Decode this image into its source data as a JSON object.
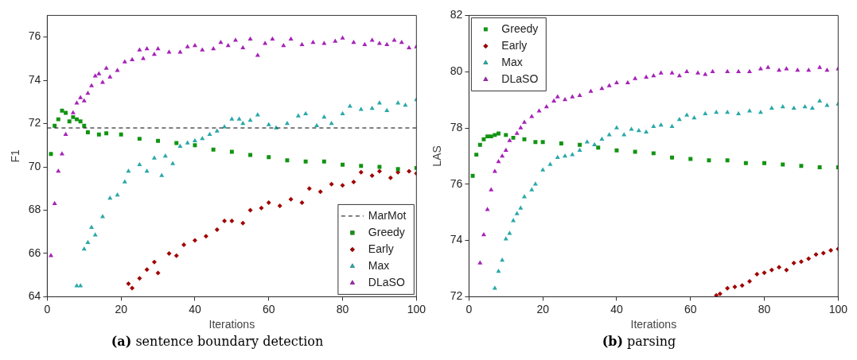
{
  "chart_data": [
    {
      "type": "scatter",
      "title": "(a) sentence boundary detection",
      "xlabel": "Iterations",
      "ylabel": "F1",
      "xlim": [
        0,
        100
      ],
      "xticks": [
        0,
        20,
        40,
        60,
        80,
        100
      ],
      "ylim": [
        64,
        77
      ],
      "yticks": [
        64,
        66,
        68,
        70,
        72,
        74,
        76
      ],
      "grid": false,
      "legend": "bottom right",
      "ref_lines": [
        {
          "axis": "y",
          "value": 71.8,
          "label": "MarMot",
          "color": "#000000",
          "line_style": "dashed"
        }
      ],
      "series": [
        {
          "name": "Greedy",
          "color": "#129412",
          "marker": "square",
          "x": [
            1,
            2,
            3,
            4,
            5,
            6,
            7,
            8,
            9,
            10,
            11,
            14,
            16,
            20,
            25,
            30,
            35,
            40,
            45,
            50,
            55,
            60,
            65,
            70,
            75,
            80,
            85,
            90,
            95,
            100
          ],
          "values": [
            70.6,
            71.9,
            72.2,
            72.6,
            72.5,
            72.1,
            72.3,
            72.2,
            72.1,
            71.9,
            71.6,
            71.5,
            71.55,
            71.5,
            71.3,
            71.2,
            71.1,
            71.0,
            70.8,
            70.7,
            70.55,
            70.45,
            70.3,
            70.25,
            70.25,
            70.1,
            70.05,
            70.0,
            69.9,
            69.95
          ]
        },
        {
          "name": "Early",
          "color": "#a00000",
          "marker": "diamond",
          "x": [
            22,
            23,
            25,
            27,
            29,
            30,
            33,
            35,
            37,
            40,
            43,
            46,
            48,
            50,
            53,
            55,
            58,
            60,
            63,
            66,
            69,
            71,
            74,
            77,
            80,
            83,
            85,
            88,
            90,
            93,
            95,
            98,
            100
          ],
          "values": [
            64.6,
            64.4,
            64.85,
            65.25,
            65.6,
            65.1,
            66.0,
            65.9,
            66.4,
            66.6,
            66.8,
            67.1,
            67.5,
            67.5,
            67.4,
            68.0,
            68.1,
            68.35,
            68.2,
            68.5,
            68.35,
            69.0,
            68.85,
            69.2,
            69.15,
            69.3,
            69.75,
            69.6,
            69.8,
            69.5,
            69.75,
            69.8,
            69.7
          ]
        },
        {
          "name": "Max",
          "color": "#2aa8a8",
          "marker": "triangle",
          "x": [
            8,
            9,
            10,
            11,
            12,
            13,
            15,
            17,
            19,
            21,
            22,
            25,
            27,
            29,
            31,
            32,
            34,
            36,
            38,
            40,
            42,
            44,
            46,
            48,
            50,
            52,
            53,
            55,
            57,
            60,
            62,
            65,
            68,
            70,
            73,
            75,
            77,
            80,
            82,
            85,
            88,
            90,
            92,
            95,
            97,
            100
          ],
          "values": [
            64.5,
            64.5,
            66.2,
            66.5,
            67.2,
            66.85,
            67.7,
            68.55,
            68.7,
            69.3,
            69.8,
            70.1,
            69.8,
            70.4,
            69.6,
            70.5,
            70.15,
            70.95,
            71.1,
            71.2,
            71.3,
            71.5,
            71.65,
            71.85,
            72.2,
            72.2,
            72.0,
            72.15,
            72.4,
            71.95,
            71.8,
            72.0,
            72.35,
            72.45,
            71.9,
            72.3,
            72.0,
            72.45,
            72.8,
            72.65,
            72.7,
            72.95,
            72.6,
            72.95,
            72.85,
            73.1
          ]
        },
        {
          "name": "DLaSO",
          "color": "#a622b8",
          "marker": "triangle",
          "x": [
            1,
            2,
            3,
            4,
            5,
            7,
            8,
            9,
            10,
            11,
            12,
            13,
            14,
            15,
            16,
            17,
            19,
            21,
            23,
            25,
            26,
            27,
            29,
            30,
            33,
            36,
            38,
            40,
            42,
            45,
            47,
            49,
            51,
            53,
            55,
            57,
            59,
            61,
            64,
            66,
            69,
            72,
            75,
            78,
            80,
            83,
            86,
            88,
            90,
            92,
            94,
            96,
            98,
            100
          ],
          "values": [
            65.9,
            68.3,
            69.8,
            70.6,
            71.5,
            72.5,
            72.95,
            73.2,
            73.05,
            73.4,
            73.75,
            74.2,
            74.3,
            73.9,
            74.55,
            74.15,
            74.45,
            74.85,
            74.95,
            75.4,
            75.0,
            75.45,
            75.2,
            75.45,
            75.3,
            75.3,
            75.55,
            75.6,
            75.4,
            75.45,
            75.75,
            75.6,
            75.85,
            75.5,
            75.9,
            75.15,
            75.7,
            75.9,
            75.6,
            75.9,
            75.65,
            75.75,
            75.7,
            75.8,
            75.95,
            75.75,
            75.65,
            75.85,
            75.7,
            75.65,
            75.85,
            75.75,
            75.5,
            75.55
          ]
        }
      ]
    },
    {
      "type": "scatter",
      "title": "(b) parsing",
      "xlabel": "Iterations",
      "ylabel": "LAS",
      "xlim": [
        0,
        100
      ],
      "xticks": [
        0,
        20,
        40,
        60,
        80,
        100
      ],
      "ylim": [
        72,
        82
      ],
      "yticks": [
        72,
        74,
        76,
        78,
        80,
        82
      ],
      "grid": false,
      "legend": "top left",
      "series": [
        {
          "name": "Greedy",
          "color": "#129412",
          "marker": "square",
          "x": [
            1,
            2,
            3,
            4,
            5,
            6,
            7,
            8,
            10,
            12,
            15,
            18,
            20,
            25,
            30,
            35,
            40,
            45,
            50,
            55,
            60,
            65,
            70,
            75,
            80,
            85,
            90,
            95,
            100
          ],
          "values": [
            76.3,
            77.05,
            77.4,
            77.6,
            77.7,
            77.7,
            77.75,
            77.8,
            77.75,
            77.65,
            77.6,
            77.5,
            77.5,
            77.45,
            77.4,
            77.3,
            77.2,
            77.15,
            77.1,
            76.95,
            76.9,
            76.85,
            76.85,
            76.75,
            76.75,
            76.7,
            76.65,
            76.6,
            76.6
          ]
        },
        {
          "name": "Early",
          "color": "#a00000",
          "marker": "diamond",
          "x": [
            67,
            68,
            70,
            72,
            74,
            76,
            78,
            80,
            82,
            84,
            86,
            88,
            90,
            92,
            94,
            96,
            98,
            100
          ],
          "values": [
            72.05,
            72.1,
            72.3,
            72.35,
            72.4,
            72.55,
            72.8,
            72.85,
            72.95,
            73.05,
            72.95,
            73.2,
            73.25,
            73.35,
            73.5,
            73.55,
            73.65,
            73.7
          ]
        },
        {
          "name": "Max",
          "color": "#2aa8a8",
          "marker": "triangle",
          "x": [
            7,
            8,
            9,
            10,
            11,
            12,
            13,
            14,
            15,
            17,
            18,
            20,
            22,
            24,
            26,
            28,
            30,
            32,
            34,
            36,
            38,
            40,
            42,
            44,
            46,
            48,
            50,
            52,
            55,
            57,
            59,
            61,
            64,
            67,
            70,
            73,
            76,
            79,
            82,
            85,
            88,
            91,
            93,
            95,
            97,
            100
          ],
          "values": [
            72.3,
            72.9,
            73.3,
            74.05,
            74.25,
            74.7,
            74.95,
            75.15,
            75.55,
            75.8,
            76.0,
            76.5,
            76.7,
            76.95,
            77.0,
            77.05,
            77.2,
            77.5,
            77.4,
            77.6,
            77.75,
            78.0,
            77.75,
            77.95,
            77.9,
            77.85,
            78.05,
            78.1,
            78.05,
            78.3,
            78.45,
            78.35,
            78.5,
            78.55,
            78.55,
            78.5,
            78.6,
            78.55,
            78.7,
            78.75,
            78.7,
            78.75,
            78.7,
            78.95,
            78.8,
            78.85
          ]
        },
        {
          "name": "DLaSO",
          "color": "#a622b8",
          "marker": "triangle",
          "x": [
            3,
            4,
            5,
            6,
            7,
            8,
            9,
            10,
            11,
            13,
            14,
            15,
            17,
            19,
            21,
            23,
            24,
            26,
            28,
            30,
            33,
            36,
            38,
            40,
            43,
            45,
            48,
            50,
            52,
            55,
            57,
            59,
            62,
            64,
            66,
            70,
            73,
            76,
            79,
            81,
            84,
            86,
            89,
            92,
            95,
            97,
            100
          ],
          "values": [
            73.2,
            74.2,
            75.1,
            75.8,
            76.45,
            76.8,
            77.0,
            77.2,
            77.55,
            77.8,
            78.0,
            78.2,
            78.4,
            78.6,
            78.75,
            78.95,
            79.1,
            79.0,
            79.1,
            79.15,
            79.3,
            79.4,
            79.5,
            79.6,
            79.6,
            79.75,
            79.8,
            79.85,
            79.95,
            79.95,
            79.85,
            80.0,
            79.95,
            79.9,
            80.0,
            80.0,
            80.0,
            80.0,
            80.1,
            80.15,
            80.05,
            80.1,
            80.05,
            80.05,
            80.15,
            80.05,
            80.1
          ]
        }
      ]
    }
  ]
}
